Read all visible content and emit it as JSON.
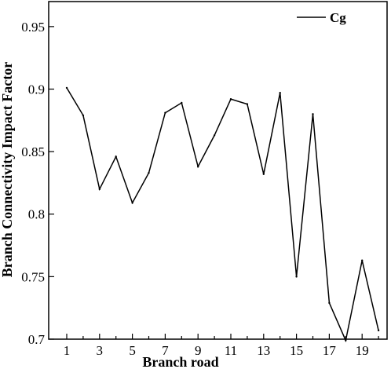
{
  "chart_data": {
    "type": "line",
    "title": "",
    "xlabel": "Branch road",
    "ylabel": "Branch Connectivity Impact Factor",
    "x": [
      1,
      2,
      3,
      4,
      5,
      6,
      7,
      8,
      9,
      10,
      11,
      12,
      13,
      14,
      15,
      16,
      17,
      18,
      19,
      20
    ],
    "series": [
      {
        "name": "Cg",
        "color": "#000000",
        "values": [
          0.901,
          0.879,
          0.82,
          0.846,
          0.809,
          0.833,
          0.881,
          0.889,
          0.838,
          0.863,
          0.892,
          0.888,
          0.832,
          0.897,
          0.75,
          0.88,
          0.729,
          0.699,
          0.763,
          0.707
        ]
      }
    ],
    "xlim": [
      0,
      21
    ],
    "ylim": [
      0.7,
      0.97
    ],
    "xticks": [
      1,
      3,
      5,
      7,
      9,
      11,
      13,
      15,
      17,
      19
    ],
    "xtick_labels": [
      "1",
      "3",
      "5",
      "7",
      "9",
      "11",
      "13",
      "15",
      "17",
      "19"
    ],
    "yticks": [
      0.7,
      0.75,
      0.8,
      0.85,
      0.9,
      0.95
    ],
    "ytick_labels": [
      "0.7",
      "0.75",
      "0.8",
      "0.85",
      "0.9",
      "0.95"
    ],
    "grid": false,
    "legend": {
      "position": "top-right",
      "entries": [
        "Cg"
      ]
    }
  }
}
